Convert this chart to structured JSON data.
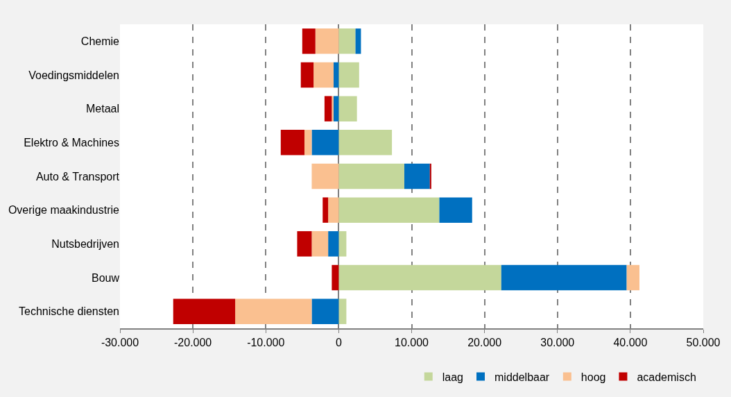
{
  "chart_data": {
    "type": "bar",
    "orientation": "horizontal",
    "stacked": true,
    "categories": [
      "Chemie",
      "Voedingsmiddelen",
      "Metaal",
      "Elektro & Machines",
      "Auto & Transport",
      "Overige maakindustrie",
      "Nutsbedrijven",
      "Bouw",
      "Technische diensten"
    ],
    "series": [
      {
        "name": "laag",
        "color": "#c4d79b",
        "values": [
          2300,
          2800,
          2500,
          7300,
          9000,
          13800,
          1050,
          22300,
          1050
        ]
      },
      {
        "name": "middelbaar",
        "color": "#0070c0",
        "values": [
          750,
          -700,
          -700,
          -3700,
          3500,
          4500,
          -1450,
          17200,
          -3700
        ]
      },
      {
        "name": "hoog",
        "color": "#fac090",
        "values": [
          -3200,
          -2750,
          -250,
          -1000,
          -3700,
          -1450,
          -2250,
          1750,
          -10500
        ]
      },
      {
        "name": "academisch",
        "color": "#c00000",
        "values": [
          -1800,
          -1750,
          -1000,
          -3250,
          200,
          -750,
          -2000,
          -950,
          -8500
        ]
      }
    ],
    "xlim": [
      -30000,
      50000
    ],
    "xticks": [
      {
        "value": -30000,
        "label": "-30.000"
      },
      {
        "value": -20000,
        "label": "-20.000"
      },
      {
        "value": -10000,
        "label": "-10.000"
      },
      0,
      {
        "value": 10000,
        "label": "10.000"
      },
      {
        "value": 20000,
        "label": "20.000"
      },
      {
        "value": 30000,
        "label": "30.000"
      },
      {
        "value": 40000,
        "label": "40.000"
      },
      {
        "value": 50000,
        "label": "50.000"
      }
    ],
    "grid": "x",
    "legend": "bottom"
  }
}
